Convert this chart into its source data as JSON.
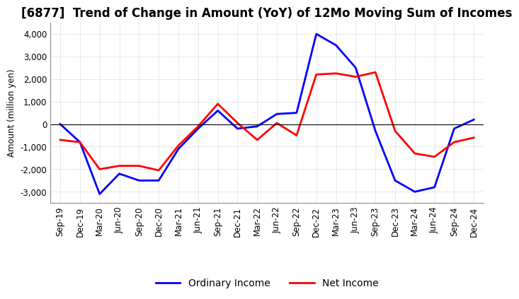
{
  "title": "[6877]  Trend of Change in Amount (YoY) of 12Mo Moving Sum of Incomes",
  "ylabel": "Amount (million yen)",
  "ylim": [
    -3500,
    4500
  ],
  "yticks": [
    -3000,
    -2000,
    -1000,
    0,
    1000,
    2000,
    3000,
    4000
  ],
  "x_labels": [
    "Sep-19",
    "Dec-19",
    "Mar-20",
    "Jun-20",
    "Sep-20",
    "Dec-20",
    "Mar-21",
    "Jun-21",
    "Sep-21",
    "Dec-21",
    "Mar-22",
    "Jun-22",
    "Sep-22",
    "Dec-22",
    "Mar-23",
    "Jun-23",
    "Sep-23",
    "Dec-23",
    "Mar-24",
    "Jun-24",
    "Sep-24",
    "Dec-24"
  ],
  "ordinary_income": [
    0,
    -800,
    -3100,
    -2200,
    -2500,
    -2500,
    -1100,
    -200,
    600,
    -200,
    -100,
    450,
    500,
    4000,
    3500,
    2500,
    -300,
    -2500,
    -3000,
    -2800,
    -200,
    200
  ],
  "net_income": [
    -700,
    -800,
    -2000,
    -1850,
    -1850,
    -2050,
    -950,
    -100,
    900,
    50,
    -700,
    50,
    -500,
    2200,
    2250,
    2100,
    2300,
    -300,
    -1300,
    -1450,
    -800,
    -600
  ],
  "ordinary_income_color": "#0000FF",
  "net_income_color": "#FF0000",
  "background_color": "#FFFFFF",
  "grid_color": "#AAAAAA",
  "title_fontsize": 12,
  "axis_fontsize": 8.5,
  "legend_fontsize": 10
}
